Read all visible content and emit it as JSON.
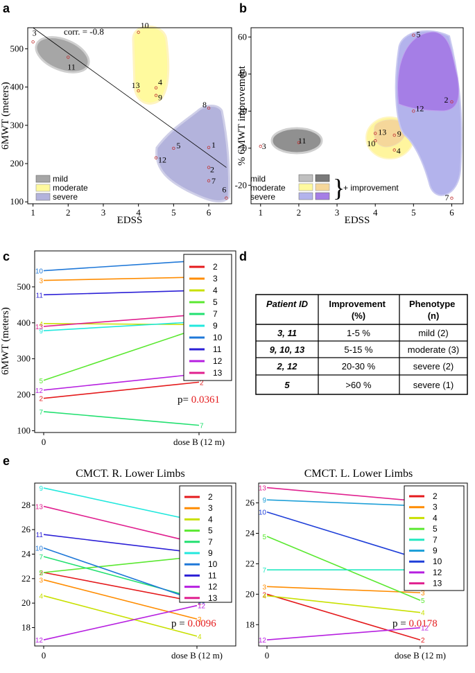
{
  "panels": {
    "a": "a",
    "b": "b",
    "c": "c",
    "d": "d",
    "e": "e"
  },
  "chart_data": [
    {
      "id": "a",
      "type": "scatter",
      "xlabel": "EDSS",
      "ylabel": "6MWT (meters)",
      "xlim": [
        0.85,
        6.65
      ],
      "ylim": [
        95,
        555
      ],
      "xticks": [
        "1",
        "2",
        "3",
        "4",
        "5",
        "6"
      ],
      "yticks": [
        "100",
        "200",
        "300",
        "400",
        "500"
      ],
      "annotation": "corr. = -0.8",
      "regression": {
        "x1": 1.0,
        "y1": 555,
        "x2": 6.5,
        "y2": 190
      },
      "points": [
        {
          "label": "3",
          "x": 1.0,
          "y": 518
        },
        {
          "label": "11",
          "x": 2.0,
          "y": 478
        },
        {
          "label": "10",
          "x": 4.0,
          "y": 543
        },
        {
          "label": "13",
          "x": 4.0,
          "y": 390
        },
        {
          "label": "4",
          "x": 4.5,
          "y": 398
        },
        {
          "label": "9",
          "x": 4.5,
          "y": 378
        },
        {
          "label": "8",
          "x": 6.0,
          "y": 345
        },
        {
          "label": "5",
          "x": 5.0,
          "y": 240
        },
        {
          "label": "1",
          "x": 6.0,
          "y": 242
        },
        {
          "label": "12",
          "x": 4.5,
          "y": 215
        },
        {
          "label": "2",
          "x": 6.0,
          "y": 190
        },
        {
          "label": "7",
          "x": 6.0,
          "y": 155
        },
        {
          "label": "6",
          "x": 6.5,
          "y": 110
        }
      ],
      "groups": [
        {
          "name": "mild",
          "color": "#a6a6a6"
        },
        {
          "name": "moderate",
          "color": "#fffa9e"
        },
        {
          "name": "severe",
          "color": "#b3b3dc"
        }
      ]
    },
    {
      "id": "b",
      "type": "scatter",
      "xlabel": "EDSS",
      "ylabel": "% 6MWT improvement",
      "xlim": [
        0.75,
        6.3
      ],
      "ylim": [
        -30,
        65
      ],
      "xticks": [
        "1",
        "2",
        "3",
        "4",
        "5",
        "6"
      ],
      "yticks": [
        "-20",
        "0",
        "20",
        "40",
        "60"
      ],
      "points": [
        {
          "label": "3",
          "x": 1.0,
          "y": 1
        },
        {
          "label": "11",
          "x": 2.0,
          "y": 3
        },
        {
          "label": "13",
          "x": 4.0,
          "y": 8
        },
        {
          "label": "9",
          "x": 4.5,
          "y": 7
        },
        {
          "label": "10",
          "x": 4.0,
          "y": 4
        },
        {
          "label": "4",
          "x": 4.5,
          "y": -1
        },
        {
          "label": "5",
          "x": 5.0,
          "y": 61
        },
        {
          "label": "12",
          "x": 5.0,
          "y": 20
        },
        {
          "label": "2",
          "x": 6.0,
          "y": 25
        },
        {
          "label": "7",
          "x": 6.0,
          "y": -27
        }
      ],
      "legend": [
        "mild",
        "moderate",
        "severe"
      ],
      "legend_note": "+ improvement"
    },
    {
      "id": "c",
      "type": "line",
      "ylabel": "6MWT (meters)",
      "categories": [
        "0",
        "dose B (12 m)"
      ],
      "ylim": [
        95,
        600
      ],
      "yticks": [
        "100",
        "200",
        "300",
        "400",
        "500"
      ],
      "pvalue_prefix": "p=",
      "pvalue": "0.0361",
      "series": [
        {
          "name": "2",
          "color": "#e41a1c",
          "values": [
            190,
            235
          ]
        },
        {
          "name": "3",
          "color": "#ff8c00",
          "values": [
            518,
            527
          ]
        },
        {
          "name": "4",
          "color": "#c8e000",
          "values": [
            398,
            395
          ]
        },
        {
          "name": "5",
          "color": "#5ae830",
          "values": [
            240,
            385
          ]
        },
        {
          "name": "7",
          "color": "#22e070",
          "values": [
            153,
            115
          ]
        },
        {
          "name": "9",
          "color": "#22e8dd",
          "values": [
            378,
            403
          ]
        },
        {
          "name": "10",
          "color": "#1f78d8",
          "values": [
            545,
            573
          ]
        },
        {
          "name": "11",
          "color": "#2b1fd6",
          "values": [
            478,
            490
          ]
        },
        {
          "name": "12",
          "color": "#b61fe0",
          "values": [
            213,
            258
          ]
        },
        {
          "name": "13",
          "color": "#e0208f",
          "values": [
            390,
            423
          ]
        }
      ]
    },
    {
      "id": "e-left",
      "type": "line",
      "title": "CMCT. R. Lower Limbs",
      "categories": [
        "0",
        "dose B (12 m)"
      ],
      "ylim": [
        16.5,
        29.8
      ],
      "yticks": [
        "18",
        "20",
        "22",
        "24",
        "26",
        "28"
      ],
      "pvalue_prefix": "p =",
      "pvalue": "0.0096",
      "series": [
        {
          "name": "2",
          "color": "#e41a1c",
          "values": [
            22.5,
            20.1
          ]
        },
        {
          "name": "3",
          "color": "#ff8c00",
          "values": [
            21.9,
            18.7
          ]
        },
        {
          "name": "4",
          "color": "#c8e000",
          "values": [
            20.6,
            17.3
          ]
        },
        {
          "name": "5",
          "color": "#5ae830",
          "values": [
            22.5,
            23.8
          ]
        },
        {
          "name": "7",
          "color": "#22e070",
          "values": [
            23.8,
            20.4
          ]
        },
        {
          "name": "9",
          "color": "#22e8dd",
          "values": [
            29.4,
            26.7
          ]
        },
        {
          "name": "10",
          "color": "#1f78d8",
          "values": [
            24.5,
            20.2
          ]
        },
        {
          "name": "11",
          "color": "#2b1fd6",
          "values": [
            25.6,
            24.1
          ]
        },
        {
          "name": "12",
          "color": "#b61fe0",
          "values": [
            17.0,
            19.8
          ]
        },
        {
          "name": "13",
          "color": "#e0208f",
          "values": [
            27.9,
            24.9
          ]
        }
      ]
    },
    {
      "id": "e-right",
      "type": "line",
      "title": "CMCT. L. Lower Limbs",
      "categories": [
        "0",
        "dose B (12 m)"
      ],
      "ylim": [
        16.6,
        27.3
      ],
      "yticks": [
        "18",
        "20",
        "22",
        "24",
        "26"
      ],
      "pvalue_prefix": "p =",
      "pvalue": "0.0178",
      "series": [
        {
          "name": "2",
          "color": "#e41a1c",
          "values": [
            20.0,
            17.0
          ]
        },
        {
          "name": "3",
          "color": "#ff8c00",
          "values": [
            20.5,
            20.1
          ]
        },
        {
          "name": "4",
          "color": "#c8e000",
          "values": [
            19.9,
            18.8
          ]
        },
        {
          "name": "5",
          "color": "#5ae830",
          "values": [
            23.8,
            19.6
          ]
        },
        {
          "name": "7",
          "color": "#22e8c0",
          "values": [
            21.6,
            21.6
          ]
        },
        {
          "name": "9",
          "color": "#1fa0d8",
          "values": [
            26.2,
            25.8
          ]
        },
        {
          "name": "10",
          "color": "#1f3fd8",
          "values": [
            25.4,
            22.3
          ]
        },
        {
          "name": "12",
          "color": "#b61fe0",
          "values": [
            17.0,
            17.8
          ]
        },
        {
          "name": "13",
          "color": "#e0208f",
          "values": [
            27.0,
            26.1
          ]
        }
      ]
    }
  ],
  "table": {
    "headers": [
      "Patient ID",
      "Improvement (%)",
      "Phenotype (n)"
    ],
    "rows": [
      [
        "3, 11",
        "1-5 %",
        "mild (2)"
      ],
      [
        "9, 10, 13",
        "5-15 %",
        "moderate (3)"
      ],
      [
        "2, 12",
        "20-30 %",
        "severe (2)"
      ],
      [
        "5",
        ">60 %",
        "severe (1)"
      ]
    ]
  }
}
